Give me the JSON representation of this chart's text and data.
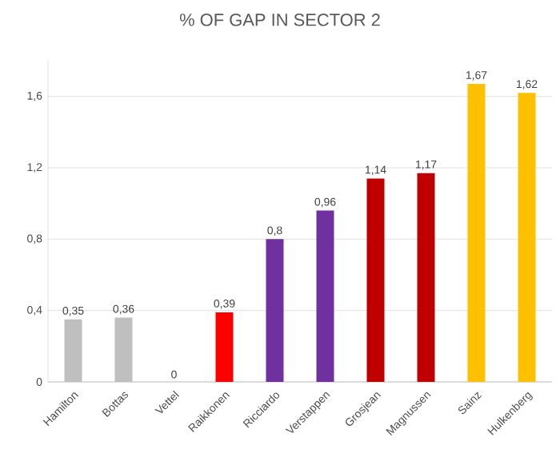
{
  "chart_data": {
    "type": "bar",
    "title": "% OF GAP IN SECTOR 2",
    "categories": [
      "Hamilton",
      "Bottas",
      "Vettel",
      "Raikkonen",
      "Ricciardo",
      "Verstappen",
      "Grosjean",
      "Magnussen",
      "Sainz",
      "Hulkenberg"
    ],
    "values": [
      0.35,
      0.36,
      0,
      0.39,
      0.8,
      0.96,
      1.14,
      1.17,
      1.67,
      1.62
    ],
    "value_labels": [
      "0,35",
      "0,36",
      "0",
      "0,39",
      "0,8",
      "0,96",
      "1,14",
      "1,17",
      "1,67",
      "1,62"
    ],
    "colors": [
      "#bfbfbf",
      "#bfbfbf",
      "#ff0000",
      "#ff0000",
      "#7030a0",
      "#7030a0",
      "#c00000",
      "#c00000",
      "#ffc000",
      "#ffc000"
    ],
    "yticks": [
      0,
      {
        "value": 0.4,
        "label": "0,4"
      },
      {
        "value": 0.8,
        "label": "0,8"
      },
      {
        "value": 1.2,
        "label": "1,2"
      },
      {
        "value": 1.6,
        "label": "1,6"
      }
    ],
    "ylim": [
      0,
      1.8
    ],
    "grid": "y"
  }
}
